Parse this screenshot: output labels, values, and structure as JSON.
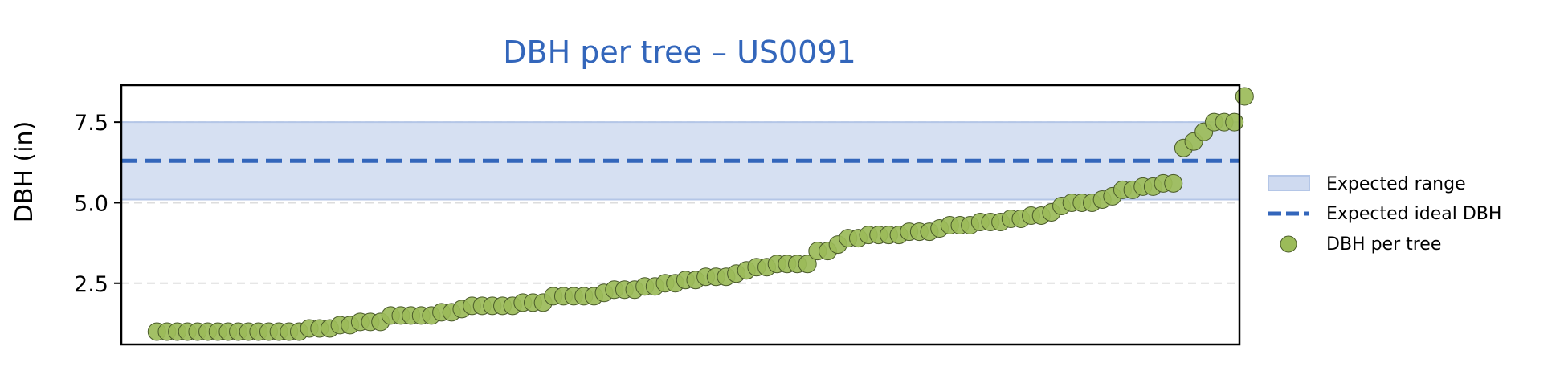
{
  "colors": {
    "title": "#3366bb",
    "band": "#cfdaf0",
    "band_edge": "#b4c6e7",
    "ideal_line": "#3366bb",
    "points": "#9bbb59",
    "point_edge": "#4a5a2a",
    "grid": "#dddddd"
  },
  "chart_data": {
    "type": "scatter",
    "title": "DBH per tree – US0091",
    "xlabel": "",
    "ylabel": "DBH (in)",
    "ylim": [
      0.6,
      8.65
    ],
    "xlim": [
      -3.5,
      106.5
    ],
    "yticks": [
      "2.5",
      "5.0",
      "7.5"
    ],
    "grid": "horizontal dashed",
    "legend_position": "right",
    "expected_range": {
      "label": "Expected range",
      "low": 5.1,
      "high": 7.5
    },
    "expected_ideal": {
      "label": "Expected ideal DBH",
      "value": 6.3
    },
    "series": [
      {
        "name": "DBH per tree",
        "values": [
          1.0,
          1.0,
          1.0,
          1.0,
          1.0,
          1.0,
          1.0,
          1.0,
          1.0,
          1.0,
          1.0,
          1.0,
          1.0,
          1.0,
          1.0,
          1.1,
          1.1,
          1.1,
          1.2,
          1.2,
          1.3,
          1.3,
          1.3,
          1.5,
          1.5,
          1.5,
          1.5,
          1.5,
          1.6,
          1.6,
          1.7,
          1.8,
          1.8,
          1.8,
          1.8,
          1.8,
          1.9,
          1.9,
          1.9,
          2.1,
          2.1,
          2.1,
          2.1,
          2.1,
          2.2,
          2.3,
          2.3,
          2.3,
          2.4,
          2.4,
          2.5,
          2.5,
          2.6,
          2.6,
          2.7,
          2.7,
          2.7,
          2.8,
          2.9,
          3.0,
          3.0,
          3.1,
          3.1,
          3.1,
          3.1,
          3.5,
          3.5,
          3.7,
          3.9,
          3.9,
          4.0,
          4.0,
          4.0,
          4.0,
          4.1,
          4.1,
          4.1,
          4.2,
          4.3,
          4.3,
          4.3,
          4.4,
          4.4,
          4.4,
          4.5,
          4.5,
          4.6,
          4.6,
          4.7,
          4.9,
          5.0,
          5.0,
          5.0,
          5.1,
          5.2,
          5.4,
          5.4,
          5.5,
          5.5,
          5.6,
          5.6,
          6.7,
          6.9,
          7.2,
          7.5,
          7.5,
          7.5,
          8.3
        ]
      }
    ]
  }
}
